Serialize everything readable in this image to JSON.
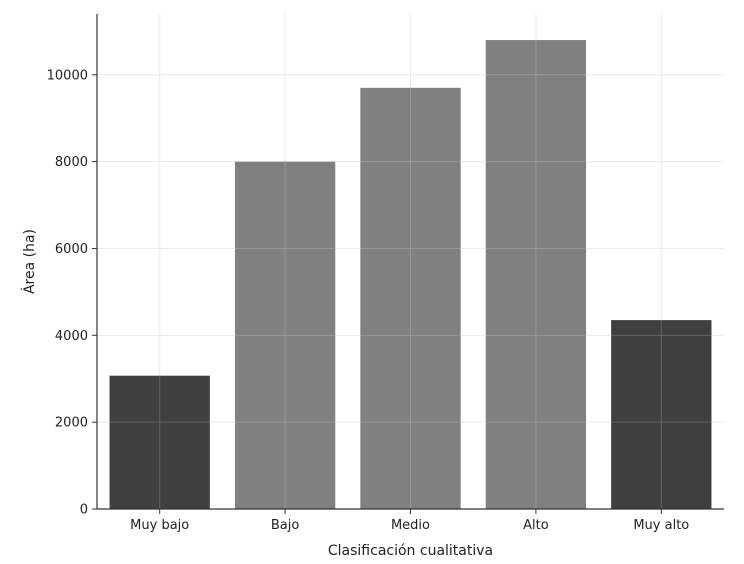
{
  "chart_data": {
    "type": "bar",
    "categories": [
      "Muy bajo",
      "Bajo",
      "Medio",
      "Alto",
      "Muy alto"
    ],
    "values": [
      3070,
      8000,
      9700,
      10800,
      4350
    ],
    "bar_colors": [
      "#404040",
      "#808080",
      "#808080",
      "#808080",
      "#404040"
    ],
    "xlabel": "Clasificación cualitativa",
    "ylabel": "Área (ha)",
    "ylim": [
      0,
      11400
    ],
    "yticks": [
      0,
      2000,
      4000,
      6000,
      8000,
      10000
    ],
    "ytick_labels": [
      "0",
      "2000",
      "4000",
      "6000",
      "8000",
      "10000"
    ],
    "grid": true
  }
}
